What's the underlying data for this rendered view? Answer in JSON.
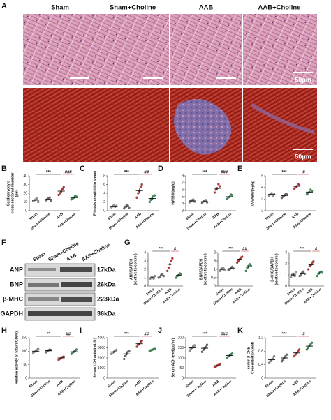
{
  "panel_a": {
    "letter": "A",
    "columns": [
      "Sham",
      "Sham+Choline",
      "AAB",
      "AAB+Choline"
    ],
    "scale_bars": [
      "50μm",
      "50μm"
    ]
  },
  "panel_f": {
    "letter": "F",
    "lanes": [
      "Sham",
      "Sham+Choline",
      "AAB",
      "AAB+Choline"
    ],
    "rows": [
      "ANP",
      "BNP",
      "β-MHC",
      "GAPDH"
    ],
    "sizes": [
      "17kDa",
      "26kDa",
      "223kDa",
      "36kDa"
    ]
  },
  "panel_g": {
    "letter": "G"
  },
  "chart_data": [
    {
      "type": "dot",
      "panel": "B",
      "ylabel": [
        "Cardiomyocyte",
        "cross-sectional diameter",
        "(μm)"
      ],
      "categories": [
        "Sham",
        "Sham+Choline",
        "AAB",
        "AAB+Choline"
      ],
      "colors": [
        "#9e9e9e",
        "#6f6f6f",
        "#d0312d",
        "#3a9a5b"
      ],
      "values": [
        12,
        13,
        22.4,
        15
      ],
      "errors": [
        0.5,
        0.5,
        1,
        0.6
      ],
      "points": [
        [
          11,
          12,
          13,
          14,
          10
        ],
        [
          12,
          13,
          14,
          15,
          11
        ],
        [
          18,
          20,
          22,
          25,
          27
        ],
        [
          13,
          14,
          15,
          17,
          16
        ]
      ],
      "ylim": [
        0,
        40
      ],
      "yticks": [
        0,
        10,
        20,
        30,
        40
      ],
      "annotations": [
        "***",
        "###"
      ]
    },
    {
      "type": "dot",
      "panel": "C",
      "ylabel": [
        "Fibrosis area(fold to sham)"
      ],
      "categories": [
        "Sham",
        "Sham+Choline",
        "AAB",
        "AAB+Choline"
      ],
      "colors": [
        "#9e9e9e",
        "#6f6f6f",
        "#d0312d",
        "#3a9a5b"
      ],
      "values": [
        1,
        0.9,
        4.6,
        2.8
      ],
      "errors": [
        0.1,
        0.2,
        0.5,
        0.3
      ],
      "points": [
        [
          0.8,
          1,
          1.2,
          0.9,
          1.1
        ],
        [
          0.5,
          0.9,
          1.3,
          1.1,
          0.7
        ],
        [
          3,
          4,
          4.5,
          5.5,
          6
        ],
        [
          2,
          2.5,
          2.8,
          3.3,
          3.5
        ]
      ],
      "ylim": [
        0,
        8
      ],
      "yticks": [
        0,
        2,
        4,
        6,
        8
      ],
      "annotations": [
        "***",
        "##"
      ]
    },
    {
      "type": "dot",
      "panel": "D",
      "ylabel": [
        "HW/BW(mg/g)"
      ],
      "categories": [
        "Sham",
        "Sham+Choline",
        "AAB",
        "AAB+Choline"
      ],
      "colors": [
        "#9e9e9e",
        "#6f6f6f",
        "#d0312d",
        "#3a9a5b"
      ],
      "values": [
        4.4,
        4.3,
        6.2,
        5
      ],
      "errors": [
        0.1,
        0.1,
        0.2,
        0.1
      ],
      "points": [
        [
          4.2,
          4.4,
          4.5,
          4.6,
          4.3
        ],
        [
          4.1,
          4.3,
          4.4,
          4.5,
          4.2
        ],
        [
          5.6,
          6,
          6.2,
          6.8,
          6.5
        ],
        [
          4.7,
          4.9,
          5,
          5.3,
          5.2
        ]
      ],
      "ylim": [
        3,
        8
      ],
      "yticks": [
        3,
        4,
        5,
        6,
        7,
        8
      ],
      "annotations": [
        "***",
        "###"
      ]
    },
    {
      "type": "dot",
      "panel": "E",
      "ylabel": [
        "LVW/BW(mg/g)"
      ],
      "categories": [
        "Sham",
        "Sham+Choline",
        "AAB",
        "AAB+Choline"
      ],
      "colors": [
        "#9e9e9e",
        "#6f6f6f",
        "#d0312d",
        "#3a9a5b"
      ],
      "values": [
        3.4,
        3.3,
        4.1,
        3.6
      ],
      "errors": [
        0.05,
        0.05,
        0.08,
        0.06
      ],
      "points": [
        [
          3.3,
          3.4,
          3.5,
          3.3,
          3.4
        ],
        [
          3.1,
          3.2,
          3.3,
          3.4,
          3.4
        ],
        [
          3.9,
          4,
          4.1,
          4.3,
          4.2
        ],
        [
          3.4,
          3.5,
          3.6,
          3.8,
          3.7
        ]
      ],
      "ylim": [
        2,
        5
      ],
      "yticks": [
        2,
        3,
        4,
        5
      ],
      "annotations": [
        "***",
        "#"
      ]
    },
    {
      "type": "dot",
      "ylabel": [
        "ANP/GAPDH",
        "(relative to control)"
      ],
      "categories": [
        "Sham",
        "Sham+Choline",
        "AAB",
        "AAB+Choline"
      ],
      "colors": [
        "#9e9e9e",
        "#6f6f6f",
        "#d0312d",
        "#3a9a5b"
      ],
      "values": [
        1,
        1.2,
        2.6,
        1.3
      ],
      "errors": [
        0.1,
        0.1,
        0.3,
        0.1
      ],
      "points": [
        [
          0.8,
          1,
          1.1,
          0.9,
          1.2
        ],
        [
          1,
          1.1,
          1.3,
          1.4,
          1.2
        ],
        [
          1.8,
          2.2,
          2.6,
          3,
          3.3
        ],
        [
          1,
          1.2,
          1.3,
          1.5,
          1.4
        ]
      ],
      "ylim": [
        0,
        4
      ],
      "yticks": [
        0,
        1,
        2,
        3,
        4
      ],
      "annotations": [
        "***",
        "#"
      ]
    },
    {
      "type": "dot",
      "ylabel": [
        "BNP/GAPDH",
        "(relative to control)"
      ],
      "categories": [
        "Sham",
        "Sham+Choline",
        "AAB",
        "AAB+Choline"
      ],
      "colors": [
        "#9e9e9e",
        "#6f6f6f",
        "#d0312d",
        "#3a9a5b"
      ],
      "values": [
        1,
        1.05,
        1.6,
        1.15
      ],
      "errors": [
        0.05,
        0.05,
        0.07,
        0.08
      ],
      "points": [
        [
          0.9,
          1,
          1.1,
          1.05,
          0.95
        ],
        [
          0.95,
          1,
          1.1,
          1.15,
          1.05
        ],
        [
          1.4,
          1.5,
          1.6,
          1.7,
          1.75
        ],
        [
          0.9,
          1.1,
          1.2,
          1.3,
          1.2
        ]
      ],
      "ylim": [
        0,
        2
      ],
      "yticks": [
        0,
        0.5,
        1,
        1.5,
        2
      ],
      "annotations": [
        "***",
        "##"
      ]
    },
    {
      "type": "dot",
      "ylabel": [
        "β-MHC/GAPDH",
        "(relative to control)"
      ],
      "categories": [
        "Sham",
        "Sham+Choline",
        "AAB",
        "AAB+Choline"
      ],
      "colors": [
        "#9e9e9e",
        "#6f6f6f",
        "#d0312d",
        "#3a9a5b"
      ],
      "values": [
        1,
        1.1,
        1.9,
        1.15
      ],
      "errors": [
        0.1,
        0.1,
        0.15,
        0.1
      ],
      "points": [
        [
          0.8,
          1,
          1.1,
          0.9,
          1.2
        ],
        [
          0.9,
          1,
          1.2,
          1.3,
          1.1
        ],
        [
          1.5,
          1.8,
          1.9,
          2.1,
          2.2
        ],
        [
          0.9,
          1.1,
          1.2,
          1.3,
          1.2
        ]
      ],
      "ylim": [
        0,
        3
      ],
      "yticks": [
        0,
        1,
        2,
        3
      ],
      "annotations": [
        "***",
        "#"
      ]
    },
    {
      "type": "dot",
      "panel": "H",
      "ylabel": [
        "Relative activity of total SOD(%)"
      ],
      "categories": [
        "Sham",
        "Sham+Choline",
        "AAB",
        "AAB+Choline"
      ],
      "colors": [
        "#9e9e9e",
        "#6f6f6f",
        "#d0312d",
        "#3a9a5b"
      ],
      "values": [
        100,
        102,
        75,
        98
      ],
      "errors": [
        3,
        2,
        2,
        3
      ],
      "points": [
        [
          92,
          98,
          100,
          105,
          108
        ],
        [
          96,
          100,
          103,
          106,
          104
        ],
        [
          68,
          72,
          75,
          78,
          80
        ],
        [
          90,
          95,
          98,
          102,
          106
        ]
      ],
      "ylim": [
        0,
        150
      ],
      "yticks": [
        0,
        50,
        100,
        150
      ],
      "annotations": [
        "**",
        "##"
      ]
    },
    {
      "type": "dot",
      "panel": "I",
      "ylabel": [
        "Serum LDH activity(U/L)"
      ],
      "categories": [
        "Sham",
        "Sham+Choline",
        "AAB",
        "AAB+Choline"
      ],
      "colors": [
        "#9e9e9e",
        "#6f6f6f",
        "#d0312d",
        "#3a9a5b"
      ],
      "values": [
        2600,
        2400,
        3400,
        2800
      ],
      "errors": [
        80,
        150,
        100,
        40
      ],
      "points": [
        [
          2400,
          2500,
          2600,
          2700,
          2800
        ],
        [
          1900,
          2200,
          2400,
          2600,
          2700
        ],
        [
          3100,
          3300,
          3400,
          3600,
          3700
        ],
        [
          2700,
          2750,
          2800,
          2850,
          2900
        ]
      ],
      "ylim": [
        0,
        4000
      ],
      "yticks": [
        0,
        1000,
        2000,
        3000,
        4000
      ],
      "annotations": [
        "***",
        "##"
      ]
    },
    {
      "type": "dot",
      "panel": "J",
      "ylabel": [
        "Serum ACh level(μg/ml)"
      ],
      "categories": [
        "Sham",
        "Sham+Choline",
        "AAB",
        "AAB+Choline"
      ],
      "colors": [
        "#9e9e9e",
        "#6f6f6f",
        "#d0312d",
        "#3a9a5b"
      ],
      "values": [
        150,
        148,
        62,
        112
      ],
      "errors": [
        5,
        6,
        3,
        4
      ],
      "points": [
        [
          135,
          145,
          150,
          158,
          162
        ],
        [
          130,
          140,
          148,
          155,
          165
        ],
        [
          55,
          58,
          62,
          65,
          70
        ],
        [
          100,
          108,
          112,
          118,
          122
        ]
      ],
      "ylim": [
        0,
        200
      ],
      "yticks": [
        0,
        50,
        100,
        150,
        200
      ],
      "annotations": [
        "***",
        "###"
      ]
    },
    {
      "type": "dot",
      "panel": "K",
      "ylabel": [
        "serum β-OHB",
        "Concentration(mM)"
      ],
      "categories": [
        "Sham",
        "Sham+Choline",
        "AAB",
        "AAB+Choline"
      ],
      "colors": [
        "#9e9e9e",
        "#6f6f6f",
        "#d0312d",
        "#3a9a5b"
      ],
      "values": [
        0.55,
        0.6,
        0.75,
        0.95
      ],
      "errors": [
        0.03,
        0.03,
        0.03,
        0.03
      ],
      "points": [
        [
          0.45,
          0.5,
          0.55,
          0.6,
          0.65
        ],
        [
          0.5,
          0.55,
          0.6,
          0.65,
          0.7
        ],
        [
          0.65,
          0.7,
          0.75,
          0.8,
          0.85
        ],
        [
          0.85,
          0.9,
          0.95,
          1,
          1.05
        ]
      ],
      "ylim": [
        0,
        1.2
      ],
      "yticks": [
        0,
        0.4,
        0.8,
        1.2
      ],
      "annotations": [
        "***",
        "#"
      ]
    }
  ]
}
